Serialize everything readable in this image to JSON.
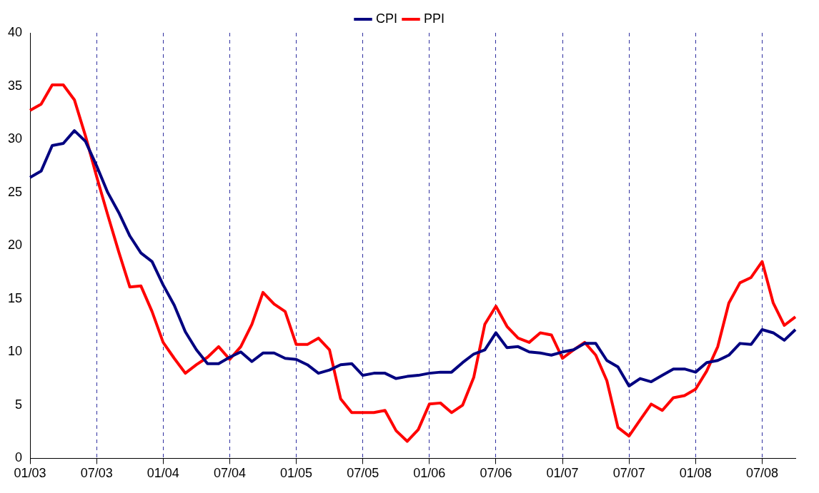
{
  "chart_data": {
    "type": "line",
    "categories": [
      "01/03",
      null,
      null,
      null,
      null,
      null,
      "07/03",
      null,
      null,
      null,
      null,
      null,
      "01/04",
      null,
      null,
      null,
      null,
      null,
      "07/04",
      null,
      null,
      null,
      null,
      null,
      "01/05",
      null,
      null,
      null,
      null,
      null,
      "07/05",
      null,
      null,
      null,
      null,
      null,
      "01/06",
      null,
      null,
      null,
      null,
      null,
      "07/06",
      null,
      null,
      null,
      null,
      null,
      "01/07",
      null,
      null,
      null,
      null,
      null,
      "07/07",
      null,
      null,
      null,
      null,
      null,
      "01/08",
      null,
      null,
      null,
      null,
      null,
      "07/08",
      null,
      null,
      null
    ],
    "series": [
      {
        "name": "CPI",
        "color": "#000080",
        "values": [
          26.4,
          27.0,
          29.4,
          29.6,
          30.8,
          29.8,
          27.5,
          25.0,
          23.1,
          20.9,
          19.3,
          18.5,
          16.3,
          14.4,
          11.9,
          10.2,
          8.9,
          8.9,
          9.5,
          10.0,
          9.1,
          9.9,
          9.9,
          9.4,
          9.3,
          8.8,
          8.0,
          8.3,
          8.8,
          8.9,
          7.8,
          8.0,
          8.0,
          7.5,
          7.7,
          7.8,
          8.0,
          8.1,
          8.1,
          9.0,
          9.8,
          10.2,
          11.8,
          10.4,
          10.5,
          10.0,
          9.9,
          9.7,
          10.0,
          10.2,
          10.8,
          10.8,
          9.2,
          8.6,
          6.8,
          7.5,
          7.2,
          7.8,
          8.4,
          8.4,
          8.1,
          9.0,
          9.2,
          9.7,
          10.8,
          10.7,
          12.1,
          11.8,
          11.1,
          12.1
        ]
      },
      {
        "name": "PPI",
        "color": "#ff0000",
        "values": [
          32.7,
          33.3,
          35.1,
          35.1,
          33.7,
          30.3,
          26.5,
          22.9,
          19.4,
          16.1,
          16.2,
          13.8,
          10.9,
          9.4,
          8.0,
          8.8,
          9.5,
          10.5,
          9.3,
          10.5,
          12.6,
          15.6,
          14.5,
          13.8,
          10.7,
          10.7,
          11.3,
          10.2,
          5.6,
          4.3,
          4.3,
          4.3,
          4.5,
          2.6,
          1.6,
          2.7,
          5.1,
          5.2,
          4.3,
          5.0,
          7.6,
          12.6,
          14.3,
          12.4,
          11.3,
          10.9,
          11.8,
          11.6,
          9.4,
          10.2,
          10.9,
          9.7,
          7.3,
          2.9,
          2.1,
          3.6,
          5.1,
          4.5,
          5.7,
          5.9,
          6.5,
          8.2,
          10.5,
          14.6,
          16.5,
          17.0,
          18.5,
          14.6,
          12.5,
          13.3
        ]
      }
    ],
    "ylim": [
      0,
      40
    ],
    "yticks": [
      0,
      5,
      10,
      15,
      20,
      25,
      30,
      35,
      40
    ],
    "grid": "x",
    "legend": "top",
    "marker": "none",
    "line_style": "solid"
  }
}
